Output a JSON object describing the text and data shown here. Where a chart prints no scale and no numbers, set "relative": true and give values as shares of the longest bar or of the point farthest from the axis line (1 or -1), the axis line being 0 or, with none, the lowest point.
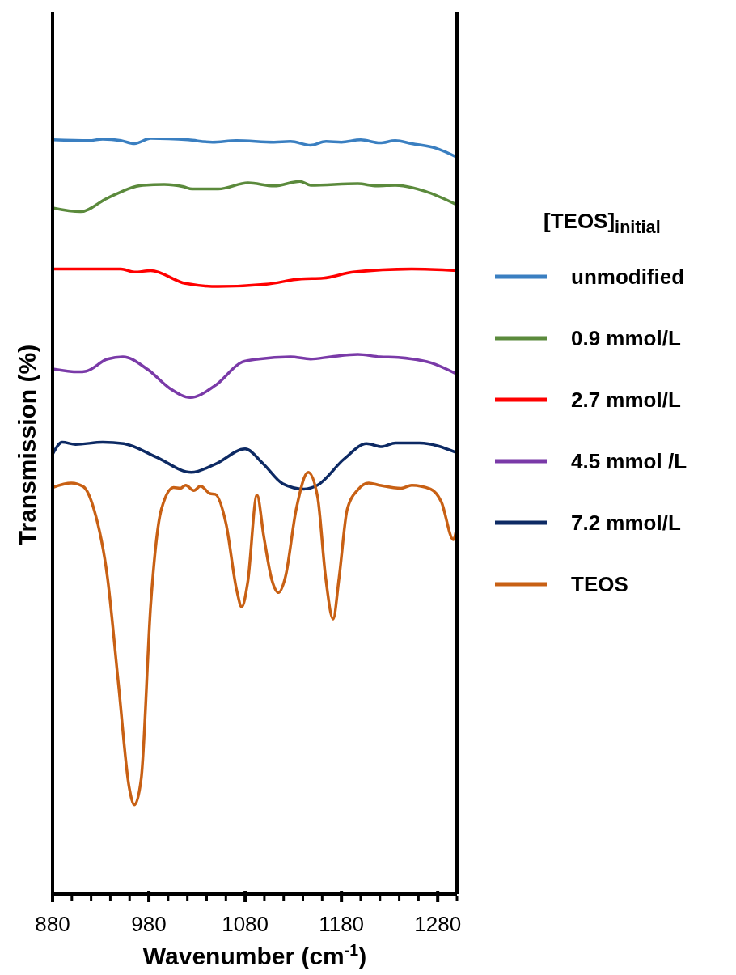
{
  "chart_data": {
    "type": "line",
    "relative": true,
    "xlabel": "Wavenumber (cm$^{-1}$)",
    "ylabel": "Transmission (%)",
    "legend_title": "[TEOS]$_{initial}$",
    "legend": "right",
    "marker": "none",
    "line_style": "solid",
    "xlim": [
      880,
      1300
    ],
    "xticks": [
      880,
      {
        "value": 900,
        "label": null
      },
      {
        "value": 920,
        "label": null
      },
      {
        "value": 940,
        "label": null
      },
      {
        "value": 960,
        "label": null
      },
      980,
      {
        "value": 1000,
        "label": null
      },
      {
        "value": 1020,
        "label": null
      },
      {
        "value": 1040,
        "label": null
      },
      {
        "value": 1060,
        "label": null
      },
      1080,
      {
        "value": 1100,
        "label": null
      },
      {
        "value": 1120,
        "label": null
      },
      {
        "value": 1140,
        "label": null
      },
      {
        "value": 1160,
        "label": null
      },
      1180,
      {
        "value": 1200,
        "label": null
      },
      {
        "value": 1220,
        "label": null
      },
      {
        "value": 1240,
        "label": null
      },
      {
        "value": 1260,
        "label": null
      },
      1280,
      {
        "value": 1300,
        "label": null
      }
    ],
    "series": [
      {
        "name": "unmodified",
        "color": "#3a7fc1",
        "x": [
          880,
          918,
          932,
          951,
          965,
          982,
          1021,
          1046,
          1071,
          1110,
          1127,
          1148,
          1164,
          1180,
          1200,
          1220,
          1236,
          1253,
          1278,
          1300
        ],
        "values": [
          0.998,
          0.997,
          0.999,
          0.997,
          0.993,
          1.0,
          0.998,
          0.995,
          0.997,
          0.995,
          0.996,
          0.991,
          0.996,
          0.995,
          0.998,
          0.994,
          0.997,
          0.993,
          0.987,
          0.975
        ]
      },
      {
        "name": "0.9 mmol/L",
        "color": "#5b8a3c",
        "x": [
          880,
          909,
          937,
          974,
          996,
          1016,
          1025,
          1052,
          1083,
          1110,
          1137,
          1148,
          1197,
          1217,
          1236,
          1267,
          1300
        ],
        "values": [
          0.908,
          0.903,
          0.921,
          0.938,
          0.939,
          0.936,
          0.933,
          0.933,
          0.941,
          0.937,
          0.943,
          0.938,
          0.94,
          0.937,
          0.938,
          0.93,
          0.912
        ]
      },
      {
        "name": "2.7 mmol/L",
        "color": "#ff0000",
        "x": [
          880,
          951,
          965,
          982,
          1018,
          1052,
          1102,
          1138,
          1161,
          1192,
          1253,
          1300
        ],
        "values": [
          0.827,
          0.827,
          0.823,
          0.825,
          0.808,
          0.804,
          0.807,
          0.814,
          0.815,
          0.823,
          0.827,
          0.825
        ]
      },
      {
        "name": "4.5 mmol /L",
        "color": "#7a3aa8",
        "x": [
          880,
          907,
          915,
          937,
          953,
          979,
          1002,
          1023,
          1049,
          1077,
          1094,
          1127,
          1148,
          1169,
          1197,
          1220,
          1239,
          1273,
          1300
        ],
        "values": [
          0.695,
          0.691,
          0.692,
          0.708,
          0.711,
          0.694,
          0.669,
          0.657,
          0.673,
          0.704,
          0.708,
          0.711,
          0.708,
          0.711,
          0.714,
          0.711,
          0.71,
          0.703,
          0.688
        ]
      },
      {
        "name": "7.2 mmol/L",
        "color": "#0d2a64",
        "x": [
          880,
          890,
          904,
          932,
          954,
          988,
          1024,
          1049,
          1080,
          1099,
          1119,
          1141,
          1155,
          1183,
          1206,
          1222,
          1236,
          1261,
          1300
        ],
        "values": [
          0.582,
          0.598,
          0.595,
          0.598,
          0.596,
          0.578,
          0.558,
          0.569,
          0.589,
          0.569,
          0.543,
          0.536,
          0.541,
          0.576,
          0.596,
          0.592,
          0.597,
          0.597,
          0.584
        ]
      },
      {
        "name": "TEOS",
        "color": "#c86014",
        "x": [
          880,
          899.5,
          912,
          923,
          937,
          948.5,
          959.6,
          965,
          972,
          982,
          993,
          1005.7,
          1012.7,
          1018.3,
          1026.7,
          1033.7,
          1043.5,
          1049,
          1060,
          1071.4,
          1076.4,
          1082.6,
          1092.3,
          1099.4,
          1107.7,
          1114.7,
          1121.7,
          1133,
          1145.5,
          1155.2,
          1163.6,
          1171.4,
          1177.6,
          1186,
          1197,
          1208.3,
          1219.5,
          1242,
          1253,
          1272.5,
          1283.8,
          1296.3,
          1300
        ],
        "values": [
          0.538,
          0.544,
          0.539,
          0.509,
          0.419,
          0.277,
          0.141,
          0.118,
          0.152,
          0.384,
          0.509,
          0.538,
          0.537,
          0.541,
          0.534,
          0.54,
          0.53,
          0.529,
          0.491,
          0.401,
          0.38,
          0.412,
          0.528,
          0.473,
          0.416,
          0.399,
          0.419,
          0.509,
          0.558,
          0.526,
          0.419,
          0.364,
          0.419,
          0.509,
          0.535,
          0.544,
          0.541,
          0.537,
          0.541,
          0.536,
          0.519,
          0.469,
          0.487
        ]
      }
    ]
  }
}
